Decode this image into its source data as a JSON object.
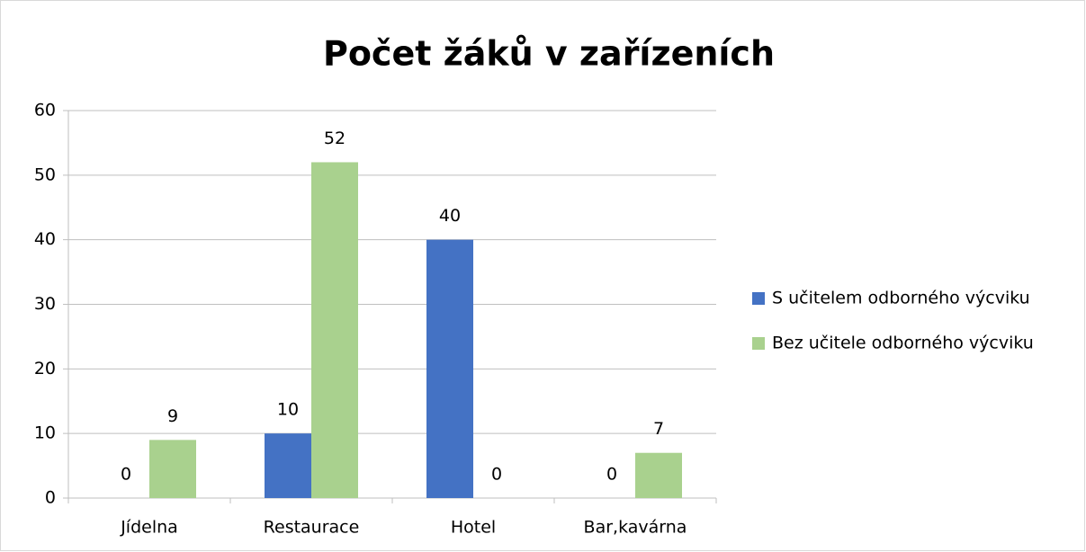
{
  "chart_data": {
    "type": "bar",
    "title": "Počet žáků v zařízeních",
    "categories": [
      "Jídelna",
      "Restaurace",
      "Hotel",
      "Bar,kavárna"
    ],
    "series": [
      {
        "name": "S učitelem odborného výcviku",
        "color": "#4472c4",
        "values": [
          0,
          10,
          40,
          0
        ]
      },
      {
        "name": "Bez učitele odborného výcviku",
        "color": "#a9d18e",
        "values": [
          9,
          52,
          0,
          7
        ]
      }
    ],
    "ylim": [
      0,
      60
    ],
    "yticks": [
      0,
      10,
      20,
      30,
      40,
      50,
      60
    ],
    "grid": true,
    "legend": "right"
  }
}
